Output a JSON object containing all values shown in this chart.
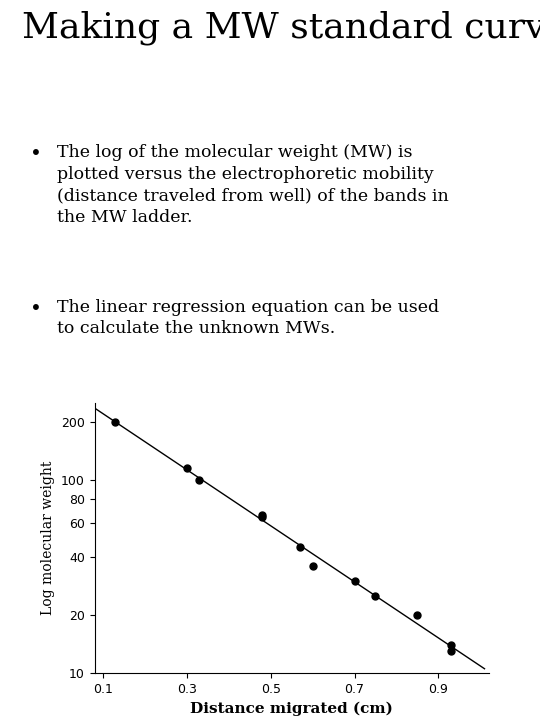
{
  "title": "Making a MW standard curve",
  "bullet1": "The log of the molecular weight (MW) is\nplotted versus the electrophoretic mobility\n(distance traveled from well) of the bands in\nthe MW ladder.",
  "bullet2": "The linear regression equation can be used\nto calculate the unknown MWs.",
  "x_data": [
    0.13,
    0.3,
    0.33,
    0.48,
    0.48,
    0.57,
    0.6,
    0.7,
    0.75,
    0.85,
    0.93,
    0.93
  ],
  "y_data": [
    200,
    116,
    100,
    66,
    64,
    45,
    36,
    30,
    25,
    20,
    14,
    13
  ],
  "xlabel": "Distance migrated (cm)",
  "ylabel": "Log molecular weight",
  "xlim": [
    0.08,
    1.02
  ],
  "ylim": [
    10,
    250
  ],
  "xticks": [
    0.1,
    0.3,
    0.5,
    0.7,
    0.9
  ],
  "yticks": [
    10,
    20,
    40,
    60,
    80,
    100,
    200
  ],
  "background_color": "#ffffff",
  "text_color": "#000000",
  "line_color": "#000000",
  "marker_color": "#000000",
  "title_fontsize": 26,
  "bullet_fontsize": 12.5,
  "axis_label_fontsize": 11,
  "tick_fontsize": 9,
  "panel_border_color": "#a0a0a0",
  "panel_bg_color": "#d8d8d8"
}
